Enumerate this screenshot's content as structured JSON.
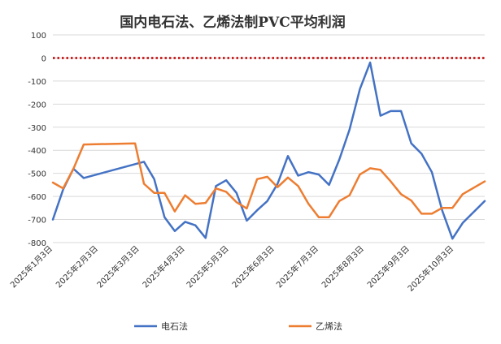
{
  "chart_data": {
    "type": "line",
    "title": "国内电石法、乙烯法制PVC平均利润",
    "ylim": [
      -800,
      100
    ],
    "yticks": [
      100,
      0,
      -100,
      -200,
      -300,
      -400,
      -500,
      -600,
      -700,
      -800
    ],
    "grid": true,
    "legend_position": "bottom",
    "reference_line": {
      "value": 0,
      "style": "dotted",
      "color": "#c00000"
    },
    "x_start": "2025-01-03",
    "x_end": "2025-10-24",
    "xtick_labels": [
      {
        "date": "2025-01-03",
        "label": "2025年1月3日"
      },
      {
        "date": "2025-02-03",
        "label": "2025年2月3日"
      },
      {
        "date": "2025-03-03",
        "label": "2025年3月3日"
      },
      {
        "date": "2025-04-03",
        "label": "2025年4月3日"
      },
      {
        "date": "2025-05-03",
        "label": "2025年5月3日"
      },
      {
        "date": "2025-06-03",
        "label": "2025年6月3日"
      },
      {
        "date": "2025-07-03",
        "label": "2025年7月3日"
      },
      {
        "date": "2025-08-03",
        "label": "2025年8月3日"
      },
      {
        "date": "2025-09-03",
        "label": "2025年9月3日"
      },
      {
        "date": "2025-10-03",
        "label": "2025年10月3日"
      }
    ],
    "series": [
      {
        "name": "电石法",
        "color": "#4472c4",
        "points": [
          [
            "2025-01-03",
            -700
          ],
          [
            "2025-01-10",
            -570
          ],
          [
            "2025-01-17",
            -480
          ],
          [
            "2025-01-24",
            -520
          ],
          [
            "2025-02-28",
            -460
          ],
          [
            "2025-03-06",
            -450
          ],
          [
            "2025-03-13",
            -525
          ],
          [
            "2025-03-20",
            -690
          ],
          [
            "2025-03-27",
            -750
          ],
          [
            "2025-04-03",
            -710
          ],
          [
            "2025-04-10",
            -725
          ],
          [
            "2025-04-17",
            -780
          ],
          [
            "2025-04-24",
            -555
          ],
          [
            "2025-05-01",
            -530
          ],
          [
            "2025-05-08",
            -585
          ],
          [
            "2025-05-15",
            -705
          ],
          [
            "2025-05-22",
            -660
          ],
          [
            "2025-05-29",
            -620
          ],
          [
            "2025-06-05",
            -545
          ],
          [
            "2025-06-12",
            -425
          ],
          [
            "2025-06-19",
            -510
          ],
          [
            "2025-06-26",
            -495
          ],
          [
            "2025-07-03",
            -505
          ],
          [
            "2025-07-10",
            -550
          ],
          [
            "2025-07-17",
            -440
          ],
          [
            "2025-07-24",
            -310
          ],
          [
            "2025-07-31",
            -135
          ],
          [
            "2025-08-07",
            -20
          ],
          [
            "2025-08-14",
            -250
          ],
          [
            "2025-08-21",
            -230
          ],
          [
            "2025-08-28",
            -230
          ],
          [
            "2025-09-04",
            -370
          ],
          [
            "2025-09-11",
            -415
          ],
          [
            "2025-09-18",
            -495
          ],
          [
            "2025-09-25",
            -660
          ],
          [
            "2025-10-02",
            -783
          ],
          [
            "2025-10-09",
            -715
          ],
          [
            "2025-10-24",
            -620
          ]
        ]
      },
      {
        "name": "乙烯法",
        "color": "#ed7d31",
        "points": [
          [
            "2025-01-03",
            -540
          ],
          [
            "2025-01-10",
            -565
          ],
          [
            "2025-01-17",
            -480
          ],
          [
            "2025-01-24",
            -375
          ],
          [
            "2025-02-28",
            -370
          ],
          [
            "2025-03-06",
            -545
          ],
          [
            "2025-03-13",
            -585
          ],
          [
            "2025-03-20",
            -585
          ],
          [
            "2025-03-27",
            -665
          ],
          [
            "2025-04-03",
            -595
          ],
          [
            "2025-04-10",
            -632
          ],
          [
            "2025-04-17",
            -628
          ],
          [
            "2025-04-24",
            -565
          ],
          [
            "2025-05-01",
            -580
          ],
          [
            "2025-05-08",
            -625
          ],
          [
            "2025-05-15",
            -652
          ],
          [
            "2025-05-22",
            -525
          ],
          [
            "2025-05-29",
            -515
          ],
          [
            "2025-06-05",
            -560
          ],
          [
            "2025-06-12",
            -518
          ],
          [
            "2025-06-19",
            -555
          ],
          [
            "2025-06-26",
            -632
          ],
          [
            "2025-07-03",
            -690
          ],
          [
            "2025-07-10",
            -690
          ],
          [
            "2025-07-17",
            -620
          ],
          [
            "2025-07-24",
            -595
          ],
          [
            "2025-07-31",
            -505
          ],
          [
            "2025-08-07",
            -478
          ],
          [
            "2025-08-14",
            -485
          ],
          [
            "2025-08-21",
            -535
          ],
          [
            "2025-08-28",
            -590
          ],
          [
            "2025-09-04",
            -618
          ],
          [
            "2025-09-11",
            -675
          ],
          [
            "2025-09-18",
            -675
          ],
          [
            "2025-09-25",
            -650
          ],
          [
            "2025-10-02",
            -650
          ],
          [
            "2025-10-09",
            -590
          ],
          [
            "2025-10-24",
            -535
          ]
        ]
      }
    ]
  }
}
